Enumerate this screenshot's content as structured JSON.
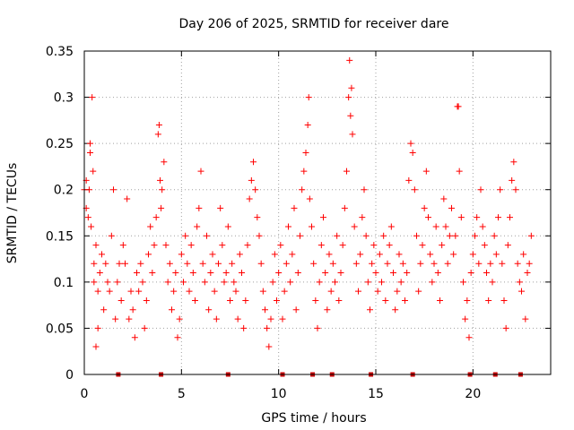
{
  "chart_data": {
    "type": "scatter",
    "title": "Day 206 of 2025, SRMTID for receiver dare",
    "xlabel": "GPS time / hours",
    "ylabel": "SRMTID / TECUs",
    "xlim": [
      0,
      24
    ],
    "ylim": [
      0,
      0.35
    ],
    "xticks": [
      0,
      5,
      10,
      15,
      20
    ],
    "yticks": [
      0,
      0.05,
      0.1,
      0.15,
      0.2,
      0.25,
      0.3,
      0.35
    ],
    "x_tick_labels": [
      "0",
      "5",
      "10",
      "15",
      "20"
    ],
    "y_tick_labels": [
      "0",
      "0.05",
      "0.1",
      "0.15",
      "0.2",
      "0.25",
      "0.3",
      "0.35"
    ],
    "grid": true,
    "marker": "+",
    "color": "#ff0000",
    "baseline_marker_color": "#cc0000",
    "baseline_markers_x": [
      1.75,
      3.95,
      7.4,
      10.2,
      11.75,
      12.75,
      14.75,
      16.9,
      19.85,
      21.15,
      22.45
    ],
    "series": [
      {
        "name": "SRMTID",
        "points": [
          [
            0.0,
            0.2
          ],
          [
            0.1,
            0.18
          ],
          [
            0.1,
            0.21
          ],
          [
            0.2,
            0.17
          ],
          [
            0.25,
            0.2
          ],
          [
            0.3,
            0.25
          ],
          [
            0.3,
            0.24
          ],
          [
            0.35,
            0.16
          ],
          [
            0.4,
            0.3
          ],
          [
            0.45,
            0.22
          ],
          [
            0.5,
            0.12
          ],
          [
            0.5,
            0.1
          ],
          [
            0.6,
            0.14
          ],
          [
            0.7,
            0.09
          ],
          [
            0.6,
            0.03
          ],
          [
            0.7,
            0.05
          ],
          [
            0.8,
            0.11
          ],
          [
            0.9,
            0.13
          ],
          [
            1.0,
            0.07
          ],
          [
            1.1,
            0.12
          ],
          [
            1.2,
            0.1
          ],
          [
            1.3,
            0.09
          ],
          [
            1.4,
            0.15
          ],
          [
            1.5,
            0.2
          ],
          [
            1.6,
            0.06
          ],
          [
            1.7,
            0.1
          ],
          [
            1.8,
            0.12
          ],
          [
            1.9,
            0.08
          ],
          [
            2.0,
            0.14
          ],
          [
            2.1,
            0.12
          ],
          [
            2.2,
            0.19
          ],
          [
            2.3,
            0.06
          ],
          [
            2.4,
            0.09
          ],
          [
            2.5,
            0.07
          ],
          [
            2.6,
            0.04
          ],
          [
            2.7,
            0.11
          ],
          [
            2.8,
            0.09
          ],
          [
            2.9,
            0.12
          ],
          [
            3.0,
            0.1
          ],
          [
            3.1,
            0.05
          ],
          [
            3.2,
            0.08
          ],
          [
            3.3,
            0.13
          ],
          [
            3.4,
            0.16
          ],
          [
            3.5,
            0.11
          ],
          [
            3.6,
            0.14
          ],
          [
            3.7,
            0.17
          ],
          [
            3.8,
            0.26
          ],
          [
            3.85,
            0.27
          ],
          [
            3.9,
            0.21
          ],
          [
            3.95,
            0.18
          ],
          [
            4.0,
            0.2
          ],
          [
            4.1,
            0.23
          ],
          [
            4.2,
            0.14
          ],
          [
            4.3,
            0.1
          ],
          [
            4.4,
            0.12
          ],
          [
            4.5,
            0.07
          ],
          [
            4.6,
            0.09
          ],
          [
            4.7,
            0.11
          ],
          [
            4.8,
            0.04
          ],
          [
            4.9,
            0.06
          ],
          [
            5.0,
            0.13
          ],
          [
            5.1,
            0.1
          ],
          [
            5.2,
            0.15
          ],
          [
            5.3,
            0.12
          ],
          [
            5.4,
            0.09
          ],
          [
            5.5,
            0.14
          ],
          [
            5.6,
            0.11
          ],
          [
            5.7,
            0.08
          ],
          [
            5.8,
            0.16
          ],
          [
            5.9,
            0.18
          ],
          [
            6.0,
            0.22
          ],
          [
            6.1,
            0.12
          ],
          [
            6.2,
            0.1
          ],
          [
            6.3,
            0.15
          ],
          [
            6.4,
            0.07
          ],
          [
            6.5,
            0.11
          ],
          [
            6.6,
            0.13
          ],
          [
            6.7,
            0.09
          ],
          [
            6.8,
            0.06
          ],
          [
            6.9,
            0.12
          ],
          [
            7.0,
            0.18
          ],
          [
            7.1,
            0.14
          ],
          [
            7.2,
            0.1
          ],
          [
            7.3,
            0.11
          ],
          [
            7.4,
            0.16
          ],
          [
            7.5,
            0.08
          ],
          [
            7.6,
            0.12
          ],
          [
            7.7,
            0.1
          ],
          [
            7.8,
            0.09
          ],
          [
            7.9,
            0.06
          ],
          [
            8.0,
            0.13
          ],
          [
            8.1,
            0.11
          ],
          [
            8.2,
            0.05
          ],
          [
            8.3,
            0.08
          ],
          [
            8.4,
            0.14
          ],
          [
            8.5,
            0.19
          ],
          [
            8.6,
            0.21
          ],
          [
            8.7,
            0.23
          ],
          [
            8.8,
            0.2
          ],
          [
            8.9,
            0.17
          ],
          [
            9.0,
            0.15
          ],
          [
            9.1,
            0.12
          ],
          [
            9.2,
            0.09
          ],
          [
            9.3,
            0.07
          ],
          [
            9.4,
            0.05
          ],
          [
            9.5,
            0.03
          ],
          [
            9.6,
            0.06
          ],
          [
            9.7,
            0.1
          ],
          [
            9.8,
            0.13
          ],
          [
            9.9,
            0.08
          ],
          [
            10.0,
            0.11
          ],
          [
            10.1,
            0.14
          ],
          [
            10.2,
            0.06
          ],
          [
            10.3,
            0.09
          ],
          [
            10.4,
            0.12
          ],
          [
            10.5,
            0.16
          ],
          [
            10.6,
            0.1
          ],
          [
            10.7,
            0.13
          ],
          [
            10.8,
            0.18
          ],
          [
            10.9,
            0.07
          ],
          [
            11.0,
            0.11
          ],
          [
            11.1,
            0.15
          ],
          [
            11.2,
            0.2
          ],
          [
            11.3,
            0.22
          ],
          [
            11.4,
            0.24
          ],
          [
            11.5,
            0.27
          ],
          [
            11.55,
            0.3
          ],
          [
            11.6,
            0.19
          ],
          [
            11.7,
            0.16
          ],
          [
            11.8,
            0.12
          ],
          [
            11.9,
            0.08
          ],
          [
            12.0,
            0.05
          ],
          [
            12.1,
            0.1
          ],
          [
            12.2,
            0.14
          ],
          [
            12.3,
            0.17
          ],
          [
            12.4,
            0.11
          ],
          [
            12.5,
            0.07
          ],
          [
            12.6,
            0.13
          ],
          [
            12.7,
            0.09
          ],
          [
            12.8,
            0.12
          ],
          [
            12.9,
            0.1
          ],
          [
            13.0,
            0.15
          ],
          [
            13.1,
            0.08
          ],
          [
            13.2,
            0.11
          ],
          [
            13.3,
            0.14
          ],
          [
            13.4,
            0.18
          ],
          [
            13.5,
            0.22
          ],
          [
            13.6,
            0.3
          ],
          [
            13.65,
            0.34
          ],
          [
            13.7,
            0.28
          ],
          [
            13.75,
            0.31
          ],
          [
            13.8,
            0.26
          ],
          [
            13.9,
            0.16
          ],
          [
            14.0,
            0.12
          ],
          [
            14.1,
            0.09
          ],
          [
            14.2,
            0.13
          ],
          [
            14.3,
            0.17
          ],
          [
            14.4,
            0.2
          ],
          [
            14.5,
            0.15
          ],
          [
            14.6,
            0.1
          ],
          [
            14.7,
            0.07
          ],
          [
            14.8,
            0.12
          ],
          [
            14.9,
            0.14
          ],
          [
            15.0,
            0.11
          ],
          [
            15.1,
            0.09
          ],
          [
            15.2,
            0.13
          ],
          [
            15.3,
            0.1
          ],
          [
            15.4,
            0.15
          ],
          [
            15.5,
            0.08
          ],
          [
            15.6,
            0.12
          ],
          [
            15.7,
            0.14
          ],
          [
            15.8,
            0.16
          ],
          [
            15.9,
            0.11
          ],
          [
            16.0,
            0.07
          ],
          [
            16.1,
            0.09
          ],
          [
            16.2,
            0.13
          ],
          [
            16.3,
            0.1
          ],
          [
            16.4,
            0.12
          ],
          [
            16.5,
            0.08
          ],
          [
            16.6,
            0.11
          ],
          [
            16.7,
            0.21
          ],
          [
            16.8,
            0.25
          ],
          [
            16.9,
            0.24
          ],
          [
            17.0,
            0.2
          ],
          [
            17.1,
            0.15
          ],
          [
            17.2,
            0.09
          ],
          [
            17.3,
            0.12
          ],
          [
            17.4,
            0.14
          ],
          [
            17.5,
            0.18
          ],
          [
            17.6,
            0.22
          ],
          [
            17.7,
            0.17
          ],
          [
            17.8,
            0.13
          ],
          [
            17.9,
            0.1
          ],
          [
            18.0,
            0.12
          ],
          [
            18.1,
            0.16
          ],
          [
            18.2,
            0.11
          ],
          [
            18.3,
            0.08
          ],
          [
            18.4,
            0.14
          ],
          [
            18.5,
            0.19
          ],
          [
            18.6,
            0.16
          ],
          [
            18.7,
            0.12
          ],
          [
            18.8,
            0.15
          ],
          [
            18.9,
            0.18
          ],
          [
            19.0,
            0.13
          ],
          [
            19.1,
            0.15
          ],
          [
            19.2,
            0.29
          ],
          [
            19.25,
            0.29
          ],
          [
            19.3,
            0.22
          ],
          [
            19.4,
            0.17
          ],
          [
            19.5,
            0.1
          ],
          [
            19.6,
            0.06
          ],
          [
            19.7,
            0.08
          ],
          [
            19.8,
            0.04
          ],
          [
            19.9,
            0.11
          ],
          [
            20.0,
            0.13
          ],
          [
            20.1,
            0.15
          ],
          [
            20.2,
            0.17
          ],
          [
            20.3,
            0.12
          ],
          [
            20.4,
            0.2
          ],
          [
            20.5,
            0.16
          ],
          [
            20.6,
            0.14
          ],
          [
            20.7,
            0.11
          ],
          [
            20.8,
            0.08
          ],
          [
            20.9,
            0.12
          ],
          [
            21.0,
            0.1
          ],
          [
            21.1,
            0.15
          ],
          [
            21.2,
            0.13
          ],
          [
            21.3,
            0.17
          ],
          [
            21.4,
            0.2
          ],
          [
            21.5,
            0.12
          ],
          [
            21.6,
            0.08
          ],
          [
            21.7,
            0.05
          ],
          [
            21.8,
            0.14
          ],
          [
            21.9,
            0.17
          ],
          [
            22.0,
            0.21
          ],
          [
            22.1,
            0.23
          ],
          [
            22.2,
            0.2
          ],
          [
            22.3,
            0.12
          ],
          [
            22.4,
            0.1
          ],
          [
            22.5,
            0.09
          ],
          [
            22.6,
            0.13
          ],
          [
            22.7,
            0.06
          ],
          [
            22.8,
            0.11
          ],
          [
            22.9,
            0.12
          ],
          [
            23.0,
            0.15
          ]
        ]
      }
    ]
  }
}
